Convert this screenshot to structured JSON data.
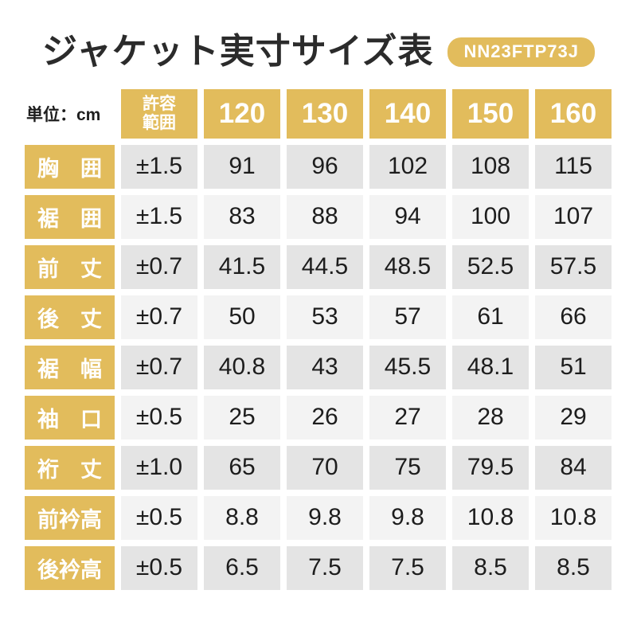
{
  "header": {
    "title": "ジャケット実寸サイズ表",
    "badge": "NN23FTP73J"
  },
  "table": {
    "unit_label": "単位：cm",
    "tolerance_header": "許容\n範囲",
    "size_headers": [
      "120",
      "130",
      "140",
      "150",
      "160"
    ],
    "rows": [
      {
        "label": "胸　囲",
        "tolerance": "±1.5",
        "values": [
          "91",
          "96",
          "102",
          "108",
          "115"
        ]
      },
      {
        "label": "裾　囲",
        "tolerance": "±1.5",
        "values": [
          "83",
          "88",
          "94",
          "100",
          "107"
        ]
      },
      {
        "label": "前　丈",
        "tolerance": "±0.7",
        "values": [
          "41.5",
          "44.5",
          "48.5",
          "52.5",
          "57.5"
        ]
      },
      {
        "label": "後　丈",
        "tolerance": "±0.7",
        "values": [
          "50",
          "53",
          "57",
          "61",
          "66"
        ]
      },
      {
        "label": "裾　幅",
        "tolerance": "±0.7",
        "values": [
          "40.8",
          "43",
          "45.5",
          "48.1",
          "51"
        ]
      },
      {
        "label": "袖　口",
        "tolerance": "±0.5",
        "values": [
          "25",
          "26",
          "27",
          "28",
          "29"
        ]
      },
      {
        "label": "裄　丈",
        "tolerance": "±1.0",
        "values": [
          "65",
          "70",
          "75",
          "79.5",
          "84"
        ]
      },
      {
        "label": "前衿高",
        "tolerance": "±0.5",
        "values": [
          "8.8",
          "9.8",
          "9.8",
          "10.8",
          "10.8"
        ]
      },
      {
        "label": "後衿高",
        "tolerance": "±0.5",
        "values": [
          "6.5",
          "7.5",
          "7.5",
          "8.5",
          "8.5"
        ]
      }
    ]
  },
  "colors": {
    "accent": "#e2bc5c",
    "row_dark": "#e4e4e4",
    "row_light": "#f3f3f3",
    "text": "#1d1d1d",
    "title": "#2b2b2b"
  },
  "chart_data": {
    "type": "table",
    "title": "ジャケット実寸サイズ表",
    "product_code": "NN23FTP73J",
    "unit": "cm",
    "columns": [
      "許容範囲",
      "120",
      "130",
      "140",
      "150",
      "160"
    ],
    "rows": [
      {
        "measurement": "胸囲",
        "tolerance": 1.5,
        "values": [
          91,
          96,
          102,
          108,
          115
        ]
      },
      {
        "measurement": "裾囲",
        "tolerance": 1.5,
        "values": [
          83,
          88,
          94,
          100,
          107
        ]
      },
      {
        "measurement": "前丈",
        "tolerance": 0.7,
        "values": [
          41.5,
          44.5,
          48.5,
          52.5,
          57.5
        ]
      },
      {
        "measurement": "後丈",
        "tolerance": 0.7,
        "values": [
          50,
          53,
          57,
          61,
          66
        ]
      },
      {
        "measurement": "裾幅",
        "tolerance": 0.7,
        "values": [
          40.8,
          43,
          45.5,
          48.1,
          51
        ]
      },
      {
        "measurement": "袖口",
        "tolerance": 0.5,
        "values": [
          25,
          26,
          27,
          28,
          29
        ]
      },
      {
        "measurement": "裄丈",
        "tolerance": 1.0,
        "values": [
          65,
          70,
          75,
          79.5,
          84
        ]
      },
      {
        "measurement": "前衿高",
        "tolerance": 0.5,
        "values": [
          8.8,
          9.8,
          9.8,
          10.8,
          10.8
        ]
      },
      {
        "measurement": "後衿高",
        "tolerance": 0.5,
        "values": [
          6.5,
          7.5,
          7.5,
          8.5,
          8.5
        ]
      }
    ]
  }
}
